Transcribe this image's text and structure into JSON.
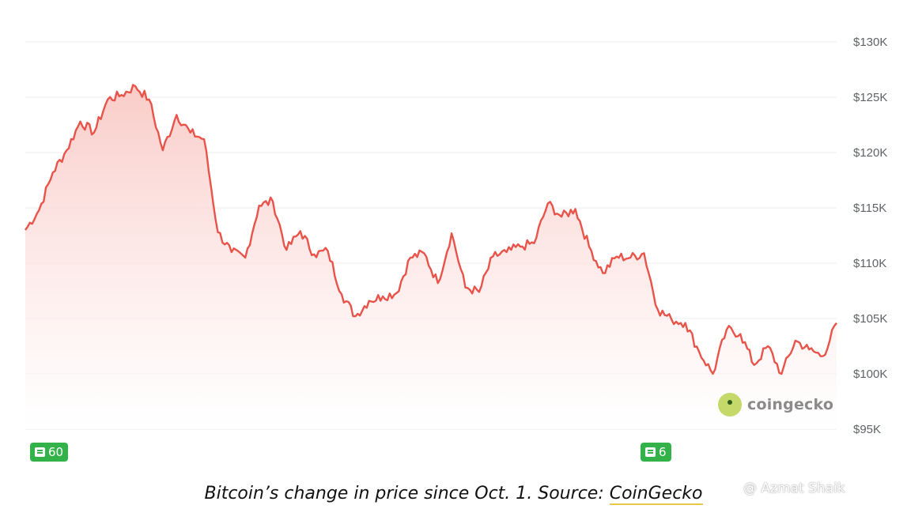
{
  "chart_data": {
    "type": "area",
    "series": [
      {
        "values": [
          113.0,
          114.8,
          118.2,
          120.2,
          122.8,
          121.8,
          124.8,
          125.2,
          126.0,
          124.8,
          120.2,
          123.4,
          121.8,
          121.2,
          112.8,
          111.0,
          110.5,
          115.2,
          115.6,
          111.2,
          112.9,
          110.8,
          111.1,
          107.2,
          105.2,
          106.6,
          107.0,
          107.3,
          110.5,
          110.9,
          108.2,
          112.7,
          107.8,
          107.4,
          110.6,
          111.0,
          111.5,
          111.8,
          115.4,
          114.2,
          114.9,
          111.5,
          109.1,
          110.6,
          110.5,
          110.9,
          105.8,
          104.9,
          104.6,
          102.0,
          100.0,
          104.0,
          103.6,
          100.8,
          102.5,
          100.0,
          103.0,
          102.2,
          101.6,
          104.6
        ],
        "color": "#e8534a"
      }
    ],
    "ylim": [
      95,
      130
    ],
    "yticks": [
      "$130K",
      "$125K",
      "$120K",
      "$115K",
      "$110K",
      "$105K",
      "$100K",
      "$95K"
    ],
    "grid": true
  },
  "news_badges": [
    {
      "count": "60",
      "icon": "news-icon"
    },
    {
      "count": "6",
      "icon": "news-icon"
    }
  ],
  "watermark": {
    "text": "coingecko",
    "icon": "gecko-logo-icon"
  },
  "caption": {
    "prefix": "Bitcoin’s change in price since Oct. 1. Source: ",
    "link": "CoinGecko"
  },
  "credit": "@ Azmat Shaik",
  "colors": {
    "line": "#e8534a",
    "fill": "#fbe3e1",
    "badge": "#33b24a",
    "grid": "#ececec"
  }
}
